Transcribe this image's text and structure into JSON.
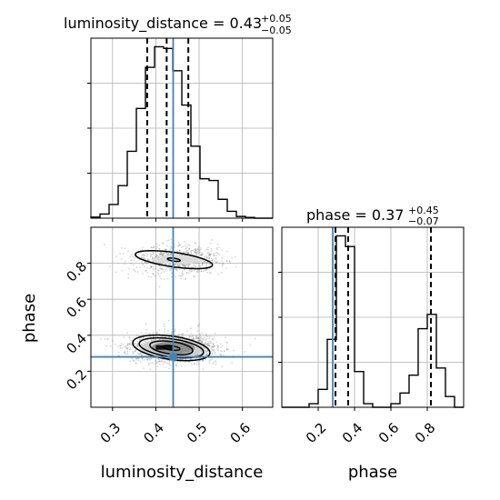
{
  "chart_data": {
    "type": "corner",
    "truth_color": "#4682b4",
    "parameters": [
      {
        "name": "luminosity_distance",
        "axis_label": "luminosity_distance",
        "title_prefix": "luminosity_distance = ",
        "median": "0.43",
        "err_plus": "+0.05",
        "err_minus": "−0.05",
        "range": [
          0.25,
          0.67
        ],
        "ticks": [
          0.3,
          0.4,
          0.5,
          0.6
        ],
        "tick_labels": [
          "0.3",
          "0.4",
          "0.5",
          "0.6"
        ],
        "quantiles": [
          0.38,
          0.425,
          0.475
        ],
        "truth": 0.44,
        "hist_edges": [
          0.25,
          0.271,
          0.292,
          0.313,
          0.334,
          0.355,
          0.376,
          0.397,
          0.418,
          0.439,
          0.46,
          0.481,
          0.502,
          0.523,
          0.544,
          0.565,
          0.586,
          0.607,
          0.628,
          0.649,
          0.67
        ],
        "hist_values": [
          0.3,
          1.2,
          4.0,
          9.5,
          19.5,
          32.0,
          44.0,
          50.0,
          49.5,
          43.0,
          33.0,
          21.0,
          11.5,
          11.0,
          5.5,
          2.0,
          0.5,
          0.2,
          0.0,
          0.0
        ]
      },
      {
        "name": "phase",
        "axis_label": "phase",
        "title_prefix": "phase = ",
        "median": "0.37",
        "err_plus": "+0.45",
        "err_minus": "−0.07",
        "range": [
          0.0,
          1.0
        ],
        "ticks": [
          0.2,
          0.4,
          0.6,
          0.8
        ],
        "tick_labels": [
          "0.2",
          "0.4",
          "0.6",
          "0.8"
        ],
        "quantiles": [
          0.295,
          0.365,
          0.82
        ],
        "truth": 0.28,
        "hist_edges": [
          0.0,
          0.05,
          0.1,
          0.15,
          0.2,
          0.25,
          0.3,
          0.35,
          0.4,
          0.45,
          0.5,
          0.55,
          0.6,
          0.65,
          0.7,
          0.75,
          0.8,
          0.85,
          0.9,
          0.95,
          1.0
        ],
        "hist_values": [
          0.0,
          0.0,
          0.0,
          0.5,
          2.5,
          9.5,
          24.0,
          22.5,
          5.0,
          0.5,
          0.0,
          0.0,
          0.5,
          2.0,
          4.5,
          11.0,
          13.0,
          5.5,
          1.5,
          0.0
        ]
      }
    ],
    "density": {
      "x_param": "luminosity_distance",
      "y_param": "phase",
      "clusters": [
        {
          "center": [
            0.45,
            0.82
          ],
          "spread": [
            0.05,
            0.04
          ],
          "weight": 0.35
        },
        {
          "center": [
            0.44,
            0.33
          ],
          "spread": [
            0.05,
            0.04
          ],
          "weight": 0.65
        }
      ],
      "contour_levels": [
        {
          "cluster": 0,
          "rx": 0.015,
          "ry": 0.008
        },
        {
          "cluster": 0,
          "rx": 0.09,
          "ry": 0.04
        },
        {
          "cluster": 1,
          "rx": 0.02,
          "ry": 0.012
        },
        {
          "cluster": 1,
          "rx": 0.05,
          "ry": 0.035
        },
        {
          "cluster": 1,
          "rx": 0.075,
          "ry": 0.05
        },
        {
          "cluster": 1,
          "rx": 0.09,
          "ry": 0.065
        }
      ]
    },
    "grid": true
  }
}
